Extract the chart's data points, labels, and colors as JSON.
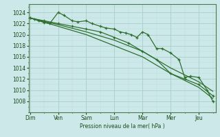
{
  "background_color": "#cce8e8",
  "grid_color_major": "#aacccc",
  "grid_color_minor": "#bbdddd",
  "line_color": "#2d6e2d",
  "xlabel": "Pression niveau de la mer( hPa )",
  "ylim": [
    1006,
    1025.5
  ],
  "yticks": [
    1008,
    1010,
    1012,
    1014,
    1016,
    1018,
    1020,
    1022,
    1024
  ],
  "day_labels": [
    "Dim",
    "Ven",
    "Sam",
    "Lun",
    "Mar",
    "Mer",
    "Jeu"
  ],
  "day_positions": [
    0,
    1,
    2,
    3,
    4,
    5,
    6
  ],
  "xlim": [
    -0.05,
    6.6
  ],
  "line_wavy_x": [
    0.0,
    0.15,
    0.3,
    0.5,
    0.7,
    1.0,
    1.2,
    1.5,
    1.7,
    2.0,
    2.2,
    2.5,
    2.7,
    3.0,
    3.2,
    3.4,
    3.6,
    3.8,
    4.0,
    4.2,
    4.5,
    4.7,
    5.0,
    5.3,
    5.5,
    5.7,
    6.0,
    6.3,
    6.5
  ],
  "line_wavy_y": [
    1023.0,
    1022.8,
    1022.5,
    1022.2,
    1022.0,
    1024.0,
    1023.5,
    1022.5,
    1022.3,
    1022.5,
    1022.0,
    1021.5,
    1021.2,
    1021.0,
    1020.5,
    1020.3,
    1020.0,
    1019.5,
    1020.5,
    1020.0,
    1017.5,
    1017.5,
    1016.7,
    1015.5,
    1012.3,
    1012.5,
    1012.3,
    1010.0,
    1008.0
  ],
  "line_smooth_x": [
    0.0,
    0.5,
    1.0,
    1.5,
    2.0,
    2.5,
    3.0,
    3.5,
    4.0,
    4.5,
    5.0,
    5.5,
    6.0,
    6.5
  ],
  "line_smooth_y": [
    1023.0,
    1022.5,
    1022.0,
    1021.5,
    1021.0,
    1020.5,
    1019.5,
    1018.5,
    1017.0,
    1015.5,
    1013.0,
    1012.0,
    1011.0,
    1009.0
  ],
  "line_straight_x": [
    0.0,
    1.0,
    2.0,
    3.0,
    4.0,
    5.0,
    6.0,
    6.5
  ],
  "line_straight_y": [
    1023.0,
    1021.8,
    1020.5,
    1019.0,
    1017.0,
    1014.0,
    1011.5,
    1009.8
  ],
  "line_lower_x": [
    0.0,
    1.0,
    2.0,
    3.0,
    4.0,
    5.0,
    6.0,
    6.5
  ],
  "line_lower_y": [
    1023.0,
    1021.5,
    1020.0,
    1018.0,
    1016.0,
    1013.0,
    1010.5,
    1008.5
  ]
}
